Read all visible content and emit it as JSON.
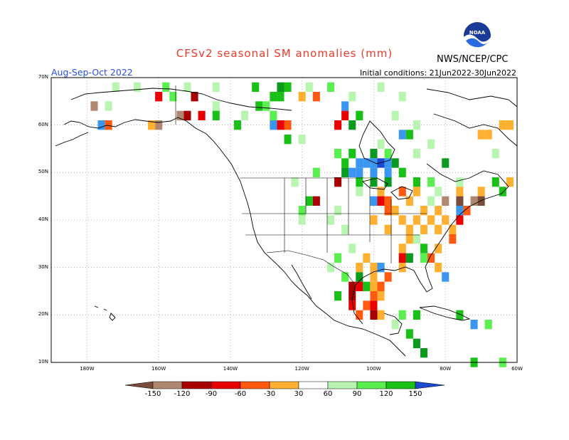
{
  "header": {
    "title": "CFSv2 seasonal SM anomalies (mm)",
    "season": "Aug-Sep-Oct 2022",
    "initial_conditions": "Initial conditions: 21Jun2022-30Jun2022",
    "source": "NWS/NCEP/CPC",
    "logo_text": "NOAA"
  },
  "map": {
    "projection": "cylindrical",
    "lon_range": [
      -190,
      -60
    ],
    "lat_range": [
      10,
      70
    ],
    "lat_ticks": [
      {
        "value": 70,
        "label": "70N"
      },
      {
        "value": 60,
        "label": "60N"
      },
      {
        "value": 50,
        "label": "50N"
      },
      {
        "value": 40,
        "label": "40N"
      },
      {
        "value": 30,
        "label": "30N"
      },
      {
        "value": 20,
        "label": "20N"
      },
      {
        "value": 10,
        "label": "10N"
      }
    ],
    "lon_ticks": [
      {
        "value": -180,
        "label": "180W"
      },
      {
        "value": -160,
        "label": "160W"
      },
      {
        "value": -140,
        "label": "140W"
      },
      {
        "value": -120,
        "label": "120W"
      },
      {
        "value": -100,
        "label": "100W"
      },
      {
        "value": -80,
        "label": "80W"
      },
      {
        "value": -60,
        "label": "60W"
      }
    ],
    "grid": "dotted"
  },
  "colorbar": {
    "colors": [
      "#7a4a3a",
      "#b08870",
      "#a80000",
      "#e80000",
      "#ff5a0f",
      "#ffb030",
      "#ffffff",
      "#b8f5b0",
      "#5aee50",
      "#18c018",
      "#0a9a20",
      "#3a96f0",
      "#1a4ad0"
    ],
    "labels": [
      "-150",
      "-120",
      "-90",
      "-60",
      "-30",
      "30",
      "60",
      "90",
      "120",
      "150"
    ]
  },
  "anomaly_cells": [
    {
      "lon": -172,
      "lat": 68,
      "cat": "w1"
    },
    {
      "lon": -166,
      "lat": 68,
      "cat": "w1"
    },
    {
      "lon": -158,
      "lat": 68,
      "cat": "w2"
    },
    {
      "lon": -152,
      "lat": 68,
      "cat": "w1"
    },
    {
      "lon": -144,
      "lat": 68,
      "cat": "w1"
    },
    {
      "lon": -133,
      "lat": 68,
      "cat": "w3"
    },
    {
      "lon": -126,
      "lat": 68,
      "cat": "w4"
    },
    {
      "lon": -124,
      "lat": 68,
      "cat": "w3"
    },
    {
      "lon": -118,
      "lat": 68,
      "cat": "w1"
    },
    {
      "lon": -112,
      "lat": 68,
      "cat": "w2"
    },
    {
      "lon": -98,
      "lat": 68,
      "cat": "w1"
    },
    {
      "lon": -160,
      "lat": 66,
      "cat": "d3"
    },
    {
      "lon": -156,
      "lat": 66,
      "cat": "w2"
    },
    {
      "lon": -150,
      "lat": 66,
      "cat": "d4"
    },
    {
      "lon": -128,
      "lat": 66,
      "cat": "w3"
    },
    {
      "lon": -126,
      "lat": 66,
      "cat": "w3"
    },
    {
      "lon": -120,
      "lat": 66,
      "cat": "d1"
    },
    {
      "lon": -116,
      "lat": 66,
      "cat": "d2"
    },
    {
      "lon": -106,
      "lat": 66,
      "cat": "w1"
    },
    {
      "lon": -92,
      "lat": 66,
      "cat": "w1"
    },
    {
      "lon": -178,
      "lat": 64,
      "cat": "d5"
    },
    {
      "lon": -174,
      "lat": 64,
      "cat": "w1"
    },
    {
      "lon": -144,
      "lat": 64,
      "cat": "w1"
    },
    {
      "lon": -132,
      "lat": 64,
      "cat": "w3"
    },
    {
      "lon": -130,
      "lat": 64,
      "cat": "w2"
    },
    {
      "lon": -108,
      "lat": 64,
      "cat": "w5"
    },
    {
      "lon": -154,
      "lat": 62,
      "cat": "d5"
    },
    {
      "lon": -152,
      "lat": 62,
      "cat": "d4"
    },
    {
      "lon": -148,
      "lat": 62,
      "cat": "d3"
    },
    {
      "lon": -144,
      "lat": 62,
      "cat": "w3"
    },
    {
      "lon": -136,
      "lat": 62,
      "cat": "w1"
    },
    {
      "lon": -128,
      "lat": 62,
      "cat": "w2"
    },
    {
      "lon": -108,
      "lat": 62,
      "cat": "d3"
    },
    {
      "lon": -104,
      "lat": 62,
      "cat": "w3"
    },
    {
      "lon": -94,
      "lat": 62,
      "cat": "w1"
    },
    {
      "lon": -176,
      "lat": 60,
      "cat": "w5"
    },
    {
      "lon": -174,
      "lat": 60,
      "cat": "d2"
    },
    {
      "lon": -162,
      "lat": 60,
      "cat": "d1"
    },
    {
      "lon": -160,
      "lat": 60,
      "cat": "d5"
    },
    {
      "lon": -138,
      "lat": 60,
      "cat": "w3"
    },
    {
      "lon": -128,
      "lat": 60,
      "cat": "w5"
    },
    {
      "lon": -126,
      "lat": 60,
      "cat": "d3"
    },
    {
      "lon": -124,
      "lat": 60,
      "cat": "d2"
    },
    {
      "lon": -110,
      "lat": 60,
      "cat": "d3"
    },
    {
      "lon": -106,
      "lat": 60,
      "cat": "w4"
    },
    {
      "lon": -88,
      "lat": 60,
      "cat": "w1"
    },
    {
      "lon": -64,
      "lat": 60,
      "cat": "d1"
    },
    {
      "lon": -62,
      "lat": 60,
      "cat": "d1"
    },
    {
      "lon": -68,
      "lat": 58,
      "cat": "d1"
    },
    {
      "lon": -70,
      "lat": 58,
      "cat": "d1"
    },
    {
      "lon": -92,
      "lat": 58,
      "cat": "w5"
    },
    {
      "lon": -90,
      "lat": 58,
      "cat": "w3"
    },
    {
      "lon": -124,
      "lat": 57,
      "cat": "w3"
    },
    {
      "lon": -120,
      "lat": 57,
      "cat": "w1"
    },
    {
      "lon": -98,
      "lat": 56,
      "cat": "w1"
    },
    {
      "lon": -84,
      "lat": 56,
      "cat": "w1"
    },
    {
      "lon": -110,
      "lat": 54,
      "cat": "w2"
    },
    {
      "lon": -106,
      "lat": 54,
      "cat": "w3"
    },
    {
      "lon": -100,
      "lat": 54,
      "cat": "w4"
    },
    {
      "lon": -96,
      "lat": 54,
      "cat": "w2"
    },
    {
      "lon": -88,
      "lat": 54,
      "cat": "w1"
    },
    {
      "lon": -66,
      "lat": 54,
      "cat": "w1"
    },
    {
      "lon": -108,
      "lat": 52,
      "cat": "w3"
    },
    {
      "lon": -104,
      "lat": 52,
      "cat": "w5"
    },
    {
      "lon": -102,
      "lat": 52,
      "cat": "w5"
    },
    {
      "lon": -100,
      "lat": 52,
      "cat": "w5"
    },
    {
      "lon": -98,
      "lat": 52,
      "cat": "w6"
    },
    {
      "lon": -96,
      "lat": 52,
      "cat": "w5"
    },
    {
      "lon": -94,
      "lat": 52,
      "cat": "w4"
    },
    {
      "lon": -80,
      "lat": 52,
      "cat": "w4"
    },
    {
      "lon": -108,
      "lat": 50,
      "cat": "w4"
    },
    {
      "lon": -106,
      "lat": 50,
      "cat": "w5"
    },
    {
      "lon": -104,
      "lat": 50,
      "cat": "w5"
    },
    {
      "lon": -100,
      "lat": 50,
      "cat": "w5"
    },
    {
      "lon": -96,
      "lat": 50,
      "cat": "w5"
    },
    {
      "lon": -92,
      "lat": 50,
      "cat": "w3"
    },
    {
      "lon": -116,
      "lat": 50,
      "cat": "w2"
    },
    {
      "lon": -122,
      "lat": 48,
      "cat": "w1"
    },
    {
      "lon": -110,
      "lat": 48,
      "cat": "d4"
    },
    {
      "lon": -104,
      "lat": 48,
      "cat": "w3"
    },
    {
      "lon": -100,
      "lat": 48,
      "cat": "w4"
    },
    {
      "lon": -96,
      "lat": 48,
      "cat": "w4"
    },
    {
      "lon": -88,
      "lat": 48,
      "cat": "w3"
    },
    {
      "lon": -84,
      "lat": 48,
      "cat": "w2"
    },
    {
      "lon": -76,
      "lat": 48,
      "cat": "w1"
    },
    {
      "lon": -66,
      "lat": 48,
      "cat": "w3"
    },
    {
      "lon": -62,
      "lat": 48,
      "cat": "d1"
    },
    {
      "lon": -104,
      "lat": 46,
      "cat": "w1"
    },
    {
      "lon": -98,
      "lat": 46,
      "cat": "d1"
    },
    {
      "lon": -92,
      "lat": 46,
      "cat": "d2"
    },
    {
      "lon": -88,
      "lat": 46,
      "cat": "d1"
    },
    {
      "lon": -82,
      "lat": 46,
      "cat": "w1"
    },
    {
      "lon": -76,
      "lat": 46,
      "cat": "d1"
    },
    {
      "lon": -70,
      "lat": 46,
      "cat": "d1"
    },
    {
      "lon": -64,
      "lat": 46,
      "cat": "w3"
    },
    {
      "lon": -118,
      "lat": 44,
      "cat": "w3"
    },
    {
      "lon": -116,
      "lat": 44,
      "cat": "d4"
    },
    {
      "lon": -100,
      "lat": 44,
      "cat": "w5"
    },
    {
      "lon": -98,
      "lat": 44,
      "cat": "d3"
    },
    {
      "lon": -96,
      "lat": 44,
      "cat": "d2"
    },
    {
      "lon": -90,
      "lat": 44,
      "cat": "d1"
    },
    {
      "lon": -84,
      "lat": 44,
      "cat": "w1"
    },
    {
      "lon": -80,
      "lat": 44,
      "cat": "d5"
    },
    {
      "lon": -76,
      "lat": 44,
      "cat": "d6"
    },
    {
      "lon": -72,
      "lat": 44,
      "cat": "d5"
    },
    {
      "lon": -70,
      "lat": 44,
      "cat": "d6"
    },
    {
      "lon": -120,
      "lat": 42,
      "cat": "w2"
    },
    {
      "lon": -110,
      "lat": 42,
      "cat": "w1"
    },
    {
      "lon": -96,
      "lat": 42,
      "cat": "d2"
    },
    {
      "lon": -94,
      "lat": 42,
      "cat": "d1"
    },
    {
      "lon": -86,
      "lat": 42,
      "cat": "d1"
    },
    {
      "lon": -82,
      "lat": 42,
      "cat": "d1"
    },
    {
      "lon": -76,
      "lat": 42,
      "cat": "w5"
    },
    {
      "lon": -74,
      "lat": 42,
      "cat": "d2"
    },
    {
      "lon": -120,
      "lat": 40,
      "cat": "w1"
    },
    {
      "lon": -112,
      "lat": 40,
      "cat": "w1"
    },
    {
      "lon": -100,
      "lat": 40,
      "cat": "d1"
    },
    {
      "lon": -92,
      "lat": 40,
      "cat": "d1"
    },
    {
      "lon": -88,
      "lat": 40,
      "cat": "d1"
    },
    {
      "lon": -84,
      "lat": 40,
      "cat": "d1"
    },
    {
      "lon": -80,
      "lat": 40,
      "cat": "d1"
    },
    {
      "lon": -76,
      "lat": 40,
      "cat": "d3"
    },
    {
      "lon": -108,
      "lat": 38,
      "cat": "w1"
    },
    {
      "lon": -96,
      "lat": 38,
      "cat": "d1"
    },
    {
      "lon": -90,
      "lat": 38,
      "cat": "d1"
    },
    {
      "lon": -86,
      "lat": 38,
      "cat": "d1"
    },
    {
      "lon": -82,
      "lat": 38,
      "cat": "d1"
    },
    {
      "lon": -78,
      "lat": 38,
      "cat": "d1"
    },
    {
      "lon": -90,
      "lat": 36,
      "cat": "d1"
    },
    {
      "lon": -88,
      "lat": 36,
      "cat": "w1"
    },
    {
      "lon": -78,
      "lat": 36,
      "cat": "d2"
    },
    {
      "lon": -106,
      "lat": 34,
      "cat": "w1"
    },
    {
      "lon": -92,
      "lat": 34,
      "cat": "d1"
    },
    {
      "lon": -86,
      "lat": 34,
      "cat": "w3"
    },
    {
      "lon": -82,
      "lat": 34,
      "cat": "d1"
    },
    {
      "lon": -110,
      "lat": 32,
      "cat": "w2"
    },
    {
      "lon": -102,
      "lat": 32,
      "cat": "d1"
    },
    {
      "lon": -92,
      "lat": 32,
      "cat": "d3"
    },
    {
      "lon": -90,
      "lat": 32,
      "cat": "w4"
    },
    {
      "lon": -86,
      "lat": 32,
      "cat": "w2"
    },
    {
      "lon": -84,
      "lat": 32,
      "cat": "d2"
    },
    {
      "lon": -112,
      "lat": 30,
      "cat": "w1"
    },
    {
      "lon": -104,
      "lat": 30,
      "cat": "d1"
    },
    {
      "lon": -100,
      "lat": 30,
      "cat": "d1"
    },
    {
      "lon": -98,
      "lat": 30,
      "cat": "w5"
    },
    {
      "lon": -92,
      "lat": 30,
      "cat": "d1"
    },
    {
      "lon": -82,
      "lat": 30,
      "cat": "d1"
    },
    {
      "lon": -80,
      "lat": 28,
      "cat": "w5"
    },
    {
      "lon": -108,
      "lat": 28,
      "cat": "w2"
    },
    {
      "lon": -104,
      "lat": 28,
      "cat": "w4"
    },
    {
      "lon": -100,
      "lat": 28,
      "cat": "d1"
    },
    {
      "lon": -96,
      "lat": 28,
      "cat": "d2"
    },
    {
      "lon": -106,
      "lat": 26,
      "cat": "d4"
    },
    {
      "lon": -104,
      "lat": 26,
      "cat": "d3"
    },
    {
      "lon": -102,
      "lat": 26,
      "cat": "w3"
    },
    {
      "lon": -100,
      "lat": 26,
      "cat": "d1"
    },
    {
      "lon": -98,
      "lat": 26,
      "cat": "d2"
    },
    {
      "lon": -110,
      "lat": 24,
      "cat": "w3"
    },
    {
      "lon": -106,
      "lat": 24,
      "cat": "d4"
    },
    {
      "lon": -100,
      "lat": 24,
      "cat": "d2"
    },
    {
      "lon": -98,
      "lat": 24,
      "cat": "d1"
    },
    {
      "lon": -106,
      "lat": 22,
      "cat": "d3"
    },
    {
      "lon": -102,
      "lat": 22,
      "cat": "d2"
    },
    {
      "lon": -100,
      "lat": 22,
      "cat": "d3"
    },
    {
      "lon": -104,
      "lat": 20,
      "cat": "d2"
    },
    {
      "lon": -100,
      "lat": 20,
      "cat": "d4"
    },
    {
      "lon": -98,
      "lat": 20,
      "cat": "d1"
    },
    {
      "lon": -94,
      "lat": 18,
      "cat": "w1"
    },
    {
      "lon": -92,
      "lat": 20,
      "cat": "w2"
    },
    {
      "lon": -88,
      "lat": 20,
      "cat": "w3"
    },
    {
      "lon": -90,
      "lat": 16,
      "cat": "w3"
    },
    {
      "lon": -88,
      "lat": 14,
      "cat": "w4"
    },
    {
      "lon": -86,
      "lat": 12,
      "cat": "w4"
    },
    {
      "lon": -76,
      "lat": 20,
      "cat": "w3"
    },
    {
      "lon": -72,
      "lat": 18,
      "cat": "w5"
    },
    {
      "lon": -68,
      "lat": 18,
      "cat": "w2"
    },
    {
      "lon": -72,
      "lat": 10,
      "cat": "w3"
    },
    {
      "lon": -64,
      "lat": 10,
      "cat": "w2"
    }
  ]
}
